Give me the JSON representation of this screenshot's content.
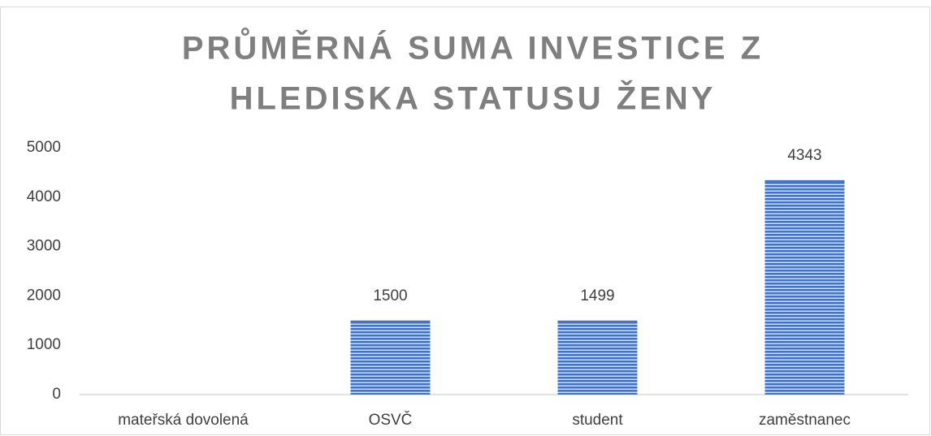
{
  "chart_data": {
    "type": "bar",
    "title": [
      "PRŮMĚRNÁ SUMA INVESTICE Z",
      "HLEDISKA STATUSU ŽENY"
    ],
    "categories": [
      "mateřská dovolená",
      "OSVČ",
      "student",
      "zaměstnanec"
    ],
    "values": [
      null,
      1500,
      1499,
      4343
    ],
    "color": "#4472c4",
    "ylim": [
      0,
      5000
    ],
    "yticks": [
      0,
      1000,
      2000,
      3000,
      4000,
      5000
    ],
    "grid": false,
    "data_labels": true
  }
}
